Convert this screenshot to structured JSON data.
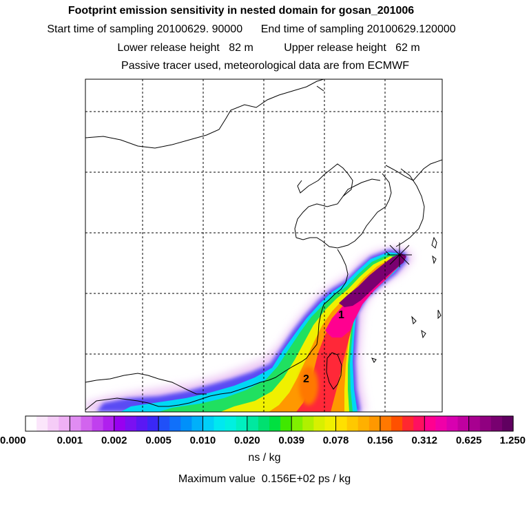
{
  "header": {
    "title": "Footprint emission sensitivity in nested domain for gosan_201006",
    "start_line": "Start time of sampling 20100629. 90000      End time of sampling 20100629.120000",
    "height_line": "Lower release height   82 m          Upper release height   62 m",
    "tracer_line": "Passive tracer used, meteorological data are from ECMWF"
  },
  "chart_data": {
    "type": "heatmap",
    "title": "Footprint emission sensitivity in nested domain for gosan_201006",
    "colorbar": {
      "tick_labels": [
        "0.000",
        "0.001",
        "0.002",
        "0.005",
        "0.010",
        "0.020",
        "0.039",
        "0.078",
        "0.156",
        "0.312",
        "0.625",
        "1.250"
      ],
      "colors": [
        "#ffffff",
        "#fbe6fb",
        "#f5ccf7",
        "#efb0f5",
        "#e08cf2",
        "#d264ee",
        "#c040ee",
        "#b020ee",
        "#9800f0",
        "#7a10f2",
        "#5a18f4",
        "#3a28f6",
        "#2050f8",
        "#1070fa",
        "#0090fa",
        "#00b0fa",
        "#00d0f8",
        "#00e8f0",
        "#00f0e0",
        "#00f0c0",
        "#00e8a0",
        "#00e070",
        "#00e040",
        "#40e800",
        "#80f000",
        "#b0f000",
        "#d8f000",
        "#f0f000",
        "#ffe000",
        "#ffc800",
        "#ffb000",
        "#ff9800",
        "#ff7800",
        "#ff5000",
        "#ff2830",
        "#ff1060",
        "#ff0090",
        "#f000a8",
        "#d800b0",
        "#c000a0",
        "#a80090",
        "#900080",
        "#780070",
        "#600060"
      ],
      "unit": "ns / kg"
    },
    "max_value_text": "Maximum value  0.156E+02 ps / kg",
    "peak_labels": [
      "1",
      "2"
    ]
  }
}
